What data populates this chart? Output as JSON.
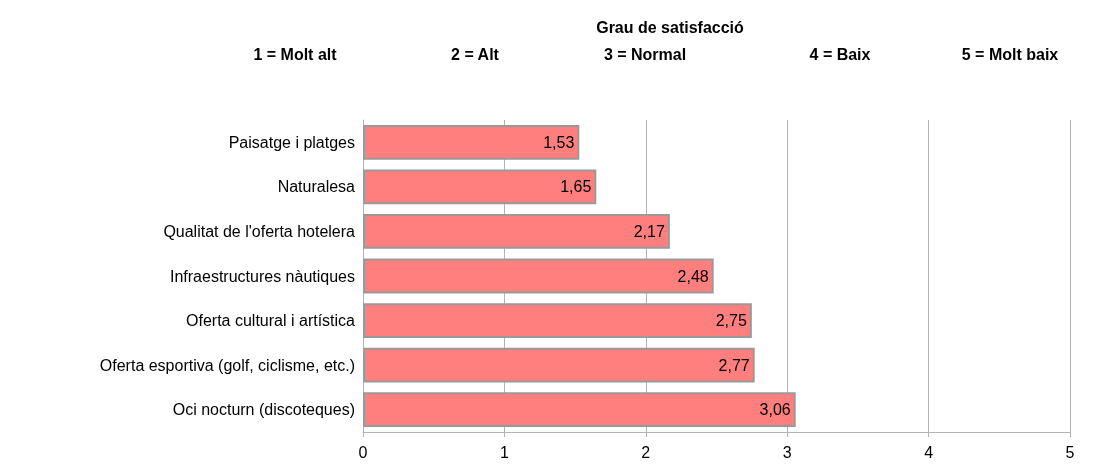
{
  "chart_data": {
    "type": "bar",
    "orientation": "horizontal",
    "title": "Grau de satisfacció",
    "annotations": [
      "1 = Molt alt",
      "2 = Alt",
      "3 = Normal",
      "4 = Baix",
      "5 = Molt baix"
    ],
    "categories": [
      "Paisatge i platges",
      "Naturalesa",
      "Qualitat de l'oferta hotelera",
      "Infraestructures nàutiques",
      "Oferta cultural i artística",
      "Oferta esportiva (golf, ciclisme, etc.)",
      "Oci nocturn (discoteques)"
    ],
    "values": [
      1.53,
      1.65,
      2.17,
      2.48,
      2.75,
      2.77,
      3.06
    ],
    "value_labels": [
      "1,53",
      "1,65",
      "2,17",
      "2,48",
      "2,75",
      "2,77",
      "3,06"
    ],
    "color": "#ff7f7f",
    "xlim": [
      0,
      5
    ],
    "xticks": [
      0,
      1,
      2,
      3,
      4,
      5
    ],
    "grid": "x"
  }
}
